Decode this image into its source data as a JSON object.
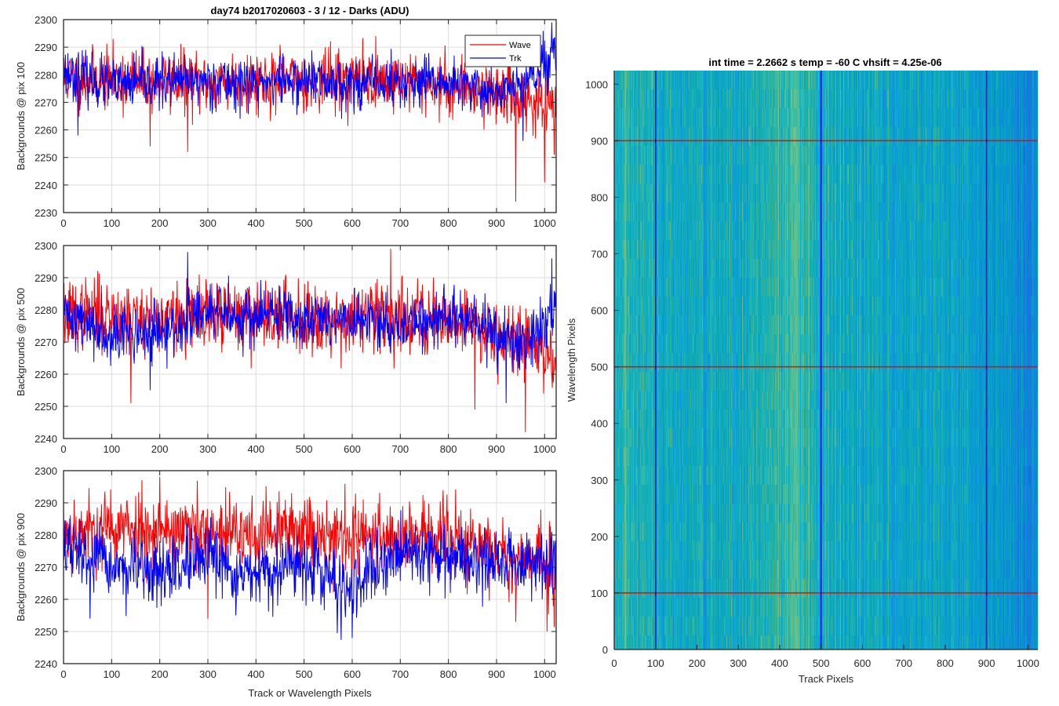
{
  "figure_title": "day74 b2017020603 - 3 / 12 - Darks (ADU)",
  "colors": {
    "wave": "#ff0000",
    "trk": "#0000ff",
    "grid": "#dcdcdc",
    "axis": "#262626"
  },
  "chart_data": [
    {
      "type": "line",
      "title": "day74 b2017020603 - 3 / 12 - Darks (ADU)",
      "xlabel": "",
      "ylabel": "Backgrounds @ pix 100",
      "xlim": [
        0,
        1024
      ],
      "ylim": [
        2230,
        2300
      ],
      "xticks": [
        0,
        100,
        200,
        300,
        400,
        500,
        600,
        700,
        800,
        900,
        1000
      ],
      "yticks": [
        2230,
        2240,
        2250,
        2260,
        2270,
        2280,
        2290,
        2300
      ],
      "grid": true,
      "legend": {
        "position": "top-right",
        "entries": [
          "Wave",
          "Trk"
        ]
      },
      "series": [
        {
          "name": "Wave",
          "color": "#ff0000",
          "mean": 2278,
          "noise": 5.5,
          "seed": 11,
          "x": [
            0,
            100,
            200,
            300,
            400,
            500,
            600,
            700,
            800,
            850,
            900,
            950,
            1000,
            1024
          ],
          "y": [
            2279,
            2278,
            2278,
            2277,
            2278,
            2278,
            2278,
            2278,
            2276,
            2275,
            2274,
            2272,
            2268,
            2266
          ],
          "spikes": [
            [
              940,
              2234
            ],
            [
              1000,
              2241
            ],
            [
              258,
              2252
            ],
            [
              180,
              2254
            ],
            [
              1020,
              2251
            ]
          ]
        },
        {
          "name": "Trk",
          "color": "#0000ff",
          "mean": 2277,
          "noise": 4.5,
          "seed": 23,
          "x": [
            0,
            100,
            200,
            300,
            400,
            500,
            600,
            700,
            800,
            850,
            900,
            950,
            1000,
            1024
          ],
          "y": [
            2281,
            2276,
            2277,
            2278,
            2277,
            2278,
            2277,
            2277,
            2277,
            2275,
            2274,
            2276,
            2282,
            2287
          ],
          "spikes": [
            [
              955,
              2256
            ],
            [
              1015,
              2299
            ],
            [
              30,
              2258
            ]
          ]
        }
      ]
    },
    {
      "type": "line",
      "title": "",
      "xlabel": "",
      "ylabel": "Backgrounds @ pix 500",
      "xlim": [
        0,
        1024
      ],
      "ylim": [
        2240,
        2300
      ],
      "xticks": [
        0,
        100,
        200,
        300,
        400,
        500,
        600,
        700,
        800,
        900,
        1000
      ],
      "yticks": [
        2240,
        2250,
        2260,
        2270,
        2280,
        2290,
        2300
      ],
      "grid": true,
      "series": [
        {
          "name": "Wave",
          "color": "#ff0000",
          "mean": 2278,
          "noise": 5.5,
          "seed": 37,
          "x": [
            0,
            100,
            200,
            300,
            400,
            500,
            600,
            700,
            800,
            850,
            900,
            950,
            1000,
            1024
          ],
          "y": [
            2278,
            2279,
            2277,
            2278,
            2279,
            2278,
            2277,
            2278,
            2277,
            2276,
            2273,
            2271,
            2268,
            2264
          ],
          "spikes": [
            [
              680,
              2299
            ],
            [
              960,
              2242
            ],
            [
              140,
              2251
            ],
            [
              855,
              2249
            ]
          ]
        },
        {
          "name": "Trk",
          "color": "#0000ff",
          "mean": 2276,
          "noise": 4.5,
          "seed": 41,
          "x": [
            0,
            100,
            200,
            300,
            400,
            500,
            600,
            700,
            800,
            850,
            900,
            950,
            1000,
            1024
          ],
          "y": [
            2279,
            2273,
            2272,
            2279,
            2278,
            2278,
            2276,
            2275,
            2278,
            2276,
            2272,
            2268,
            2276,
            2283
          ],
          "spikes": [
            [
              258,
              2298
            ],
            [
              1015,
              2296
            ],
            [
              180,
              2255
            ],
            [
              920,
              2251
            ]
          ]
        }
      ]
    },
    {
      "type": "line",
      "title": "",
      "xlabel": "Track or Wavelength Pixels",
      "ylabel": "Backgrounds @ pix 900",
      "xlim": [
        0,
        1024
      ],
      "ylim": [
        2240,
        2300
      ],
      "xticks": [
        0,
        100,
        200,
        300,
        400,
        500,
        600,
        700,
        800,
        900,
        1000
      ],
      "yticks": [
        2240,
        2250,
        2260,
        2270,
        2280,
        2290,
        2300
      ],
      "grid": true,
      "series": [
        {
          "name": "Wave",
          "color": "#ff0000",
          "mean": 2280,
          "noise": 6,
          "seed": 53,
          "x": [
            0,
            100,
            200,
            300,
            400,
            500,
            600,
            700,
            800,
            850,
            900,
            950,
            1000,
            1024
          ],
          "y": [
            2281,
            2282,
            2282,
            2280,
            2280,
            2282,
            2279,
            2280,
            2278,
            2277,
            2274,
            2272,
            2271,
            2268
          ],
          "spikes": [
            [
              200,
              2298
            ],
            [
              940,
              2253
            ],
            [
              1005,
              2250
            ],
            [
              300,
              2254
            ]
          ]
        },
        {
          "name": "Trk",
          "color": "#0000ff",
          "mean": 2272,
          "noise": 5,
          "seed": 67,
          "x": [
            0,
            100,
            200,
            300,
            400,
            500,
            600,
            700,
            800,
            850,
            900,
            950,
            1000,
            1024
          ],
          "y": [
            2276,
            2270,
            2268,
            2272,
            2266,
            2272,
            2262,
            2276,
            2273,
            2272,
            2272,
            2272,
            2272,
            2270
          ],
          "spikes": [
            [
              600,
              2248
            ],
            [
              55,
              2254
            ],
            [
              358,
              2255
            ],
            [
              1015,
              2281
            ]
          ]
        }
      ]
    },
    {
      "type": "heatmap",
      "title": "int time = 2.2662 s    temp = -60 C    vhsift = 4.25e-06",
      "xlabel": "Track Pixels",
      "ylabel": "Wavelength Pixels",
      "xlim": [
        0,
        1024
      ],
      "ylim": [
        0,
        1024
      ],
      "xticks": [
        0,
        100,
        200,
        300,
        400,
        500,
        600,
        700,
        800,
        900,
        1000
      ],
      "yticks": [
        0,
        100,
        200,
        300,
        400,
        500,
        600,
        700,
        800,
        900,
        1000
      ],
      "colormap": "parula",
      "horizontal_lines": {
        "color": "#ff0000",
        "values": [
          100,
          500,
          900
        ]
      },
      "vertical_lines": {
        "color": "#0000ff",
        "values": [
          100,
          500,
          900
        ]
      },
      "column_profile": {
        "x": [
          0,
          50,
          100,
          150,
          200,
          300,
          400,
          440,
          500,
          600,
          700,
          800,
          900,
          950,
          1000,
          1024
        ],
        "level": [
          0.55,
          0.55,
          0.52,
          0.52,
          0.5,
          0.52,
          0.58,
          0.62,
          0.52,
          0.5,
          0.5,
          0.49,
          0.46,
          0.42,
          0.36,
          0.36
        ]
      }
    }
  ]
}
